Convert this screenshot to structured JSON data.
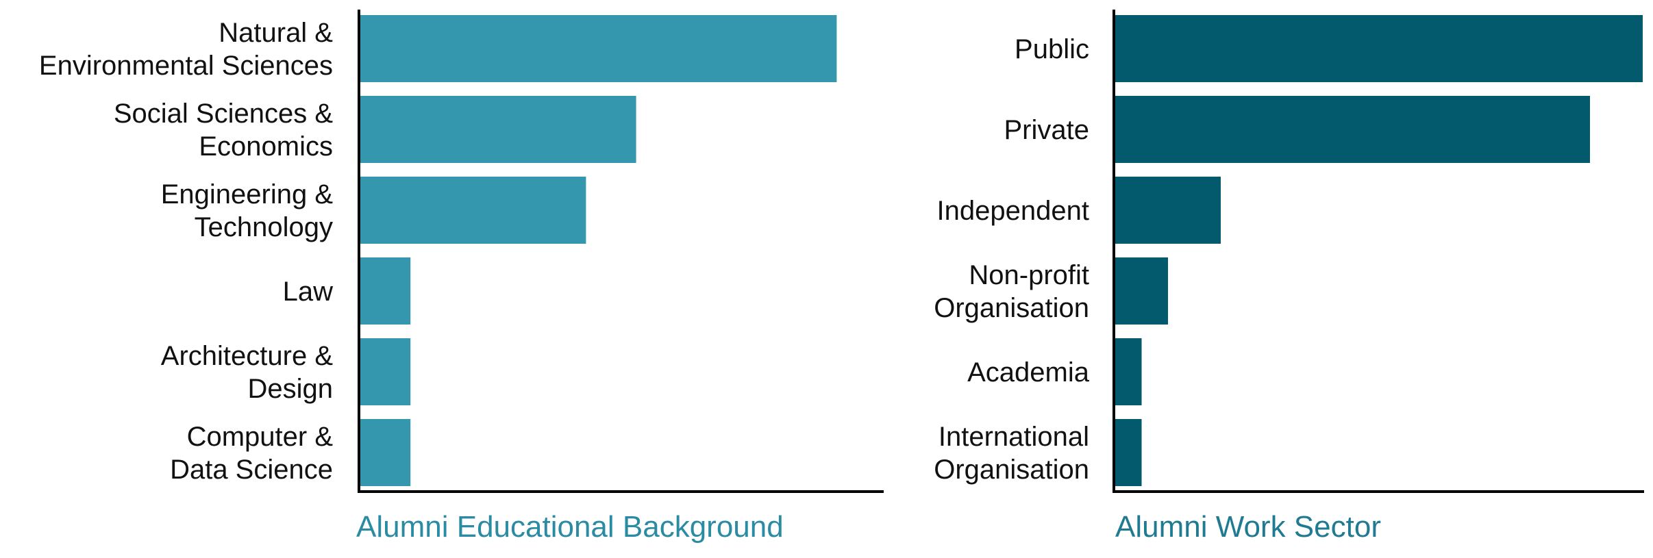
{
  "chart_data": [
    {
      "type": "bar",
      "orientation": "horizontal",
      "title": "Alumni Educational Background",
      "categories": [
        [
          "Natural &",
          "Environmental Sciences"
        ],
        [
          "Social Sciences &",
          "Economics"
        ],
        [
          "Engineering &",
          "Technology"
        ],
        [
          "Law"
        ],
        [
          "Architecture &",
          "Design"
        ],
        [
          "Computer &",
          "Data Science"
        ]
      ],
      "values": [
        19,
        11,
        9,
        2,
        2,
        2
      ],
      "xlim": [
        0,
        20
      ],
      "color": "#3497AE",
      "title_color": "#2A8BA3",
      "grid": false,
      "legend": "none"
    },
    {
      "type": "bar",
      "orientation": "horizontal",
      "title": "Alumni Work Sector",
      "categories": [
        [
          "Public"
        ],
        [
          "Private"
        ],
        [
          "Independent"
        ],
        [
          "Non-profit",
          "Organisation"
        ],
        [
          "Academia"
        ],
        [
          "International",
          "Organisation"
        ]
      ],
      "values": [
        20,
        18,
        4,
        2,
        1,
        1
      ],
      "xlim": [
        0,
        20
      ],
      "color": "#035A6D",
      "title_color": "#1F7A92",
      "grid": false,
      "legend": "none"
    }
  ]
}
